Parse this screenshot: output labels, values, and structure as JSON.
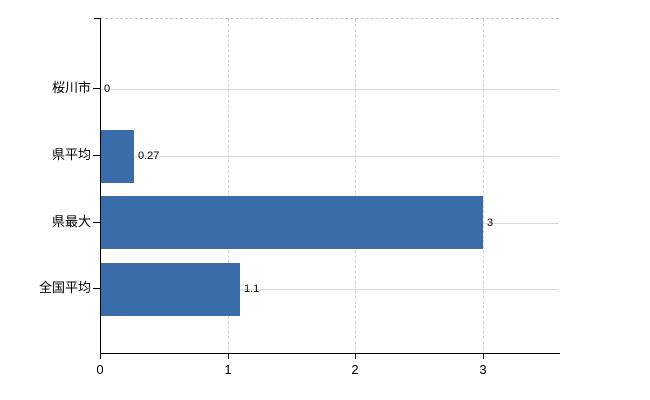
{
  "figure": {
    "background": "#ffffff"
  },
  "chart_data": {
    "type": "bar",
    "orientation": "horizontal",
    "title": "",
    "xlabel": "",
    "ylabel": "",
    "categories": [
      "桜川市",
      "県平均",
      "県最大",
      "全国平均"
    ],
    "values": [
      0,
      0.27,
      3,
      1.1
    ],
    "value_labels": [
      "0",
      "0.27",
      "3",
      "1.1"
    ],
    "x_ticks": [
      0,
      1,
      2,
      3
    ],
    "x_tick_labels": [
      "0",
      "1",
      "2",
      "3"
    ],
    "xlim": [
      0,
      3.6
    ],
    "grid": true,
    "legend": false,
    "bar_color": "#3b6caa",
    "gridline_color": "#d9d9d9",
    "axis_color": "#000000",
    "text_color": "#000000"
  }
}
